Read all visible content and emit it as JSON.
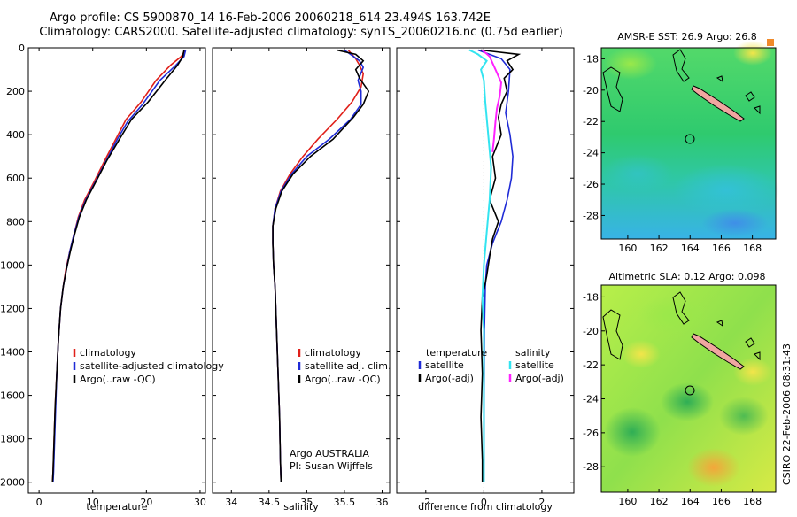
{
  "header": {
    "line1": "Argo profile: CS 5900870_14 16-Feb-2006 20060218_614 23.494S 163.742E",
    "line2": "Climatology: CARS2000. Satellite-adjusted climatology: synTS_20060216.nc (0.75d earlier)"
  },
  "colors": {
    "climatology": "#e0201a",
    "satellite": "#1f2bd6",
    "argo": "#000000",
    "sat_diff": "#33e4f0",
    "argo_diff": "#ff22ff"
  },
  "chart_data": [
    {
      "type": "line",
      "id": "temperature",
      "xlabel": "temperature",
      "ylabel": "",
      "xlim": [
        -2,
        31
      ],
      "ylim": [
        2050,
        0
      ],
      "xticks": [
        0,
        10,
        20,
        30
      ],
      "yticks": [
        0,
        200,
        400,
        600,
        800,
        1000,
        1200,
        1400,
        1600,
        1800,
        2000
      ],
      "legend": [
        "climatology",
        "satellite-adjusted climatology",
        "Argo(..raw -QC)"
      ],
      "series": [
        {
          "name": "climatology",
          "color": "#e0201a",
          "points": [
            [
              27.2,
              10
            ],
            [
              26.5,
              40
            ],
            [
              24.5,
              80
            ],
            [
              21.8,
              150
            ],
            [
              19,
              250
            ],
            [
              16.2,
              330
            ],
            [
              14.3,
              420
            ],
            [
              12.2,
              520
            ],
            [
              10.2,
              620
            ],
            [
              8.5,
              700
            ],
            [
              7.3,
              780
            ],
            [
              6.5,
              860
            ],
            [
              5.7,
              940
            ],
            [
              5.0,
              1020
            ],
            [
              4.5,
              1100
            ],
            [
              4.0,
              1200
            ],
            [
              3.6,
              1350
            ],
            [
              3.3,
              1500
            ],
            [
              3.0,
              1650
            ],
            [
              2.8,
              1800
            ],
            [
              2.6,
              1950
            ],
            [
              2.5,
              2000
            ]
          ]
        },
        {
          "name": "satellite-adjusted climatology",
          "color": "#1f2bd6",
          "points": [
            [
              27.3,
              10
            ],
            [
              27.0,
              40
            ],
            [
              25.5,
              80
            ],
            [
              22.5,
              150
            ],
            [
              19.3,
              260
            ],
            [
              16.5,
              340
            ],
            [
              14.6,
              420
            ],
            [
              12.5,
              520
            ],
            [
              10.4,
              620
            ],
            [
              8.7,
              700
            ],
            [
              7.4,
              780
            ],
            [
              6.5,
              860
            ],
            [
              5.7,
              940
            ],
            [
              5.1,
              1020
            ],
            [
              4.5,
              1100
            ],
            [
              4.0,
              1200
            ],
            [
              3.6,
              1350
            ],
            [
              3.3,
              1500
            ],
            [
              3.1,
              1650
            ],
            [
              2.9,
              1800
            ],
            [
              2.7,
              1950
            ],
            [
              2.6,
              2000
            ]
          ]
        },
        {
          "name": "Argo(..raw -QC)",
          "color": "#000000",
          "points": [
            [
              27.0,
              10
            ],
            [
              26.8,
              40
            ],
            [
              25.8,
              80
            ],
            [
              23.5,
              150
            ],
            [
              20.3,
              250
            ],
            [
              17.2,
              330
            ],
            [
              15.0,
              420
            ],
            [
              12.6,
              520
            ],
            [
              10.5,
              620
            ],
            [
              8.8,
              700
            ],
            [
              7.5,
              780
            ],
            [
              6.6,
              860
            ],
            [
              5.8,
              940
            ],
            [
              5.1,
              1020
            ],
            [
              4.5,
              1100
            ],
            [
              4.0,
              1200
            ],
            [
              3.6,
              1350
            ],
            [
              3.3,
              1500
            ],
            [
              3.0,
              1650
            ],
            [
              2.8,
              1800
            ],
            [
              2.6,
              1950
            ],
            [
              2.5,
              2000
            ]
          ]
        }
      ]
    },
    {
      "type": "line",
      "id": "salinity",
      "xlabel": "salinity",
      "ylabel": "",
      "xlim": [
        33.75,
        36.1
      ],
      "ylim": [
        2050,
        0
      ],
      "xticks": [
        34,
        34.5,
        35,
        35.5,
        36
      ],
      "yticks": [
        0,
        200,
        400,
        600,
        800,
        1000,
        1200,
        1400,
        1600,
        1800,
        2000
      ],
      "legend": [
        "climatology",
        "satellite adj. clim.",
        "Argo(..raw -QC)"
      ],
      "annotation": [
        "Argo AUSTRALIA",
        "PI: Susan Wijffels"
      ],
      "series": [
        {
          "name": "climatology",
          "color": "#e0201a",
          "points": [
            [
              35.55,
              10
            ],
            [
              35.65,
              50
            ],
            [
              35.7,
              80
            ],
            [
              35.75,
              120
            ],
            [
              35.72,
              180
            ],
            [
              35.6,
              250
            ],
            [
              35.4,
              330
            ],
            [
              35.15,
              420
            ],
            [
              34.95,
              500
            ],
            [
              34.78,
              580
            ],
            [
              34.65,
              660
            ],
            [
              34.58,
              740
            ],
            [
              34.55,
              820
            ],
            [
              34.55,
              900
            ],
            [
              34.56,
              1000
            ],
            [
              34.58,
              1100
            ],
            [
              34.6,
              1300
            ],
            [
              34.62,
              1500
            ],
            [
              34.64,
              1700
            ],
            [
              34.65,
              1900
            ],
            [
              34.66,
              2000
            ]
          ]
        },
        {
          "name": "satellite adj. clim.",
          "color": "#1f2bd6",
          "points": [
            [
              35.5,
              10
            ],
            [
              35.7,
              60
            ],
            [
              35.75,
              90
            ],
            [
              35.68,
              150
            ],
            [
              35.72,
              200
            ],
            [
              35.72,
              260
            ],
            [
              35.58,
              330
            ],
            [
              35.3,
              420
            ],
            [
              35.0,
              500
            ],
            [
              34.8,
              580
            ],
            [
              34.66,
              660
            ],
            [
              34.58,
              740
            ],
            [
              34.55,
              820
            ],
            [
              34.55,
              900
            ],
            [
              34.56,
              1000
            ],
            [
              34.58,
              1100
            ],
            [
              34.6,
              1300
            ],
            [
              34.62,
              1500
            ],
            [
              34.64,
              1700
            ],
            [
              34.65,
              1900
            ],
            [
              34.66,
              2000
            ]
          ]
        },
        {
          "name": "Argo(..raw -QC)",
          "color": "#000000",
          "points": [
            [
              35.4,
              10
            ],
            [
              35.65,
              30
            ],
            [
              35.75,
              60
            ],
            [
              35.65,
              100
            ],
            [
              35.7,
              140
            ],
            [
              35.82,
              200
            ],
            [
              35.75,
              260
            ],
            [
              35.62,
              320
            ],
            [
              35.35,
              420
            ],
            [
              35.05,
              500
            ],
            [
              34.82,
              580
            ],
            [
              34.67,
              660
            ],
            [
              34.59,
              740
            ],
            [
              34.55,
              820
            ],
            [
              34.55,
              900
            ],
            [
              34.56,
              1000
            ],
            [
              34.58,
              1100
            ],
            [
              34.6,
              1300
            ],
            [
              34.62,
              1500
            ],
            [
              34.64,
              1700
            ],
            [
              34.65,
              1900
            ],
            [
              34.66,
              2000
            ]
          ]
        }
      ]
    },
    {
      "type": "line",
      "id": "difference",
      "xlabel": "difference from climatology",
      "ylabel": "",
      "xlim": [
        -3,
        3.1
      ],
      "ylim": [
        2050,
        0
      ],
      "xticks": [
        -2,
        0,
        2
      ],
      "yticks": [
        0,
        200,
        400,
        600,
        800,
        1000,
        1200,
        1400,
        1600,
        1800,
        2000
      ],
      "legend_temperature": [
        "temperature",
        "satellite",
        "Argo(-adj)"
      ],
      "legend_salinity": [
        "salinity",
        "satellite",
        "Argo(-adj)"
      ],
      "series": [
        {
          "name": "satellite",
          "group": "temperature",
          "color": "#1f2bd6",
          "points": [
            [
              -0.2,
              10
            ],
            [
              0.6,
              50
            ],
            [
              0.9,
              100
            ],
            [
              0.85,
              200
            ],
            [
              0.75,
              300
            ],
            [
              0.9,
              400
            ],
            [
              1.0,
              500
            ],
            [
              0.95,
              600
            ],
            [
              0.8,
              700
            ],
            [
              0.6,
              800
            ],
            [
              0.3,
              900
            ],
            [
              0.1,
              1000
            ],
            [
              0.05,
              1100
            ],
            [
              0.02,
              1300
            ],
            [
              0.01,
              1600
            ],
            [
              0.0,
              2000
            ]
          ]
        },
        {
          "name": "Argo(-adj)",
          "group": "temperature",
          "color": "#000000",
          "points": [
            [
              -0.1,
              10
            ],
            [
              1.2,
              30
            ],
            [
              0.8,
              60
            ],
            [
              1.0,
              100
            ],
            [
              0.7,
              140
            ],
            [
              0.8,
              200
            ],
            [
              0.6,
              260
            ],
            [
              0.5,
              320
            ],
            [
              0.6,
              400
            ],
            [
              0.3,
              500
            ],
            [
              0.4,
              600
            ],
            [
              0.2,
              700
            ],
            [
              0.5,
              800
            ],
            [
              0.3,
              880
            ],
            [
              0.2,
              960
            ],
            [
              0.1,
              1050
            ],
            [
              -0.05,
              1150
            ],
            [
              -0.1,
              1300
            ],
            [
              -0.05,
              1500
            ],
            [
              -0.1,
              1700
            ],
            [
              -0.05,
              1900
            ],
            [
              -0.05,
              2000
            ]
          ]
        },
        {
          "name": "satellite",
          "group": "salinity",
          "color": "#33e4f0",
          "points": [
            [
              -0.5,
              10
            ],
            [
              -0.2,
              30
            ],
            [
              0.1,
              60
            ],
            [
              -0.1,
              100
            ],
            [
              0.0,
              150
            ],
            [
              0.05,
              250
            ],
            [
              0.15,
              400
            ],
            [
              0.25,
              550
            ],
            [
              0.2,
              700
            ],
            [
              0.1,
              850
            ],
            [
              0.0,
              1000
            ],
            [
              -0.05,
              1150
            ],
            [
              0.0,
              1300
            ],
            [
              0.0,
              1600
            ],
            [
              0.0,
              2000
            ]
          ]
        },
        {
          "name": "Argo(-adj)",
          "group": "salinity",
          "color": "#ff22ff",
          "points": [
            [
              -0.05,
              10
            ],
            [
              0.2,
              40
            ],
            [
              0.4,
              100
            ],
            [
              0.6,
              160
            ],
            [
              0.55,
              220
            ],
            [
              0.45,
              280
            ],
            [
              0.4,
              340
            ],
            [
              0.35,
              420
            ],
            [
              0.3,
              480
            ]
          ]
        }
      ]
    }
  ],
  "maps": [
    {
      "id": "sst",
      "title": "AMSR-E SST: 26.9 Argo: 26.8",
      "xticks": [
        "160",
        "162",
        "164",
        "166",
        "168"
      ],
      "yticks": [
        "-18",
        "-20",
        "-22",
        "-24",
        "-26",
        "-28"
      ],
      "xlim": [
        158.3,
        169.5
      ],
      "ylim": [
        -17.3,
        -29.5
      ]
    },
    {
      "id": "sla",
      "title": "Altimetric SLA: 0.12 Argo: 0.098",
      "xticks": [
        "160",
        "162",
        "164",
        "166",
        "168"
      ],
      "yticks": [
        "-18",
        "-20",
        "-22",
        "-24",
        "-26",
        "-28"
      ],
      "xlim": [
        158.3,
        169.5
      ],
      "ylim": [
        -17.3,
        -29.5
      ]
    }
  ],
  "footer": {
    "stamp": "CSIRO 22-Feb-2006 08:31:43"
  }
}
